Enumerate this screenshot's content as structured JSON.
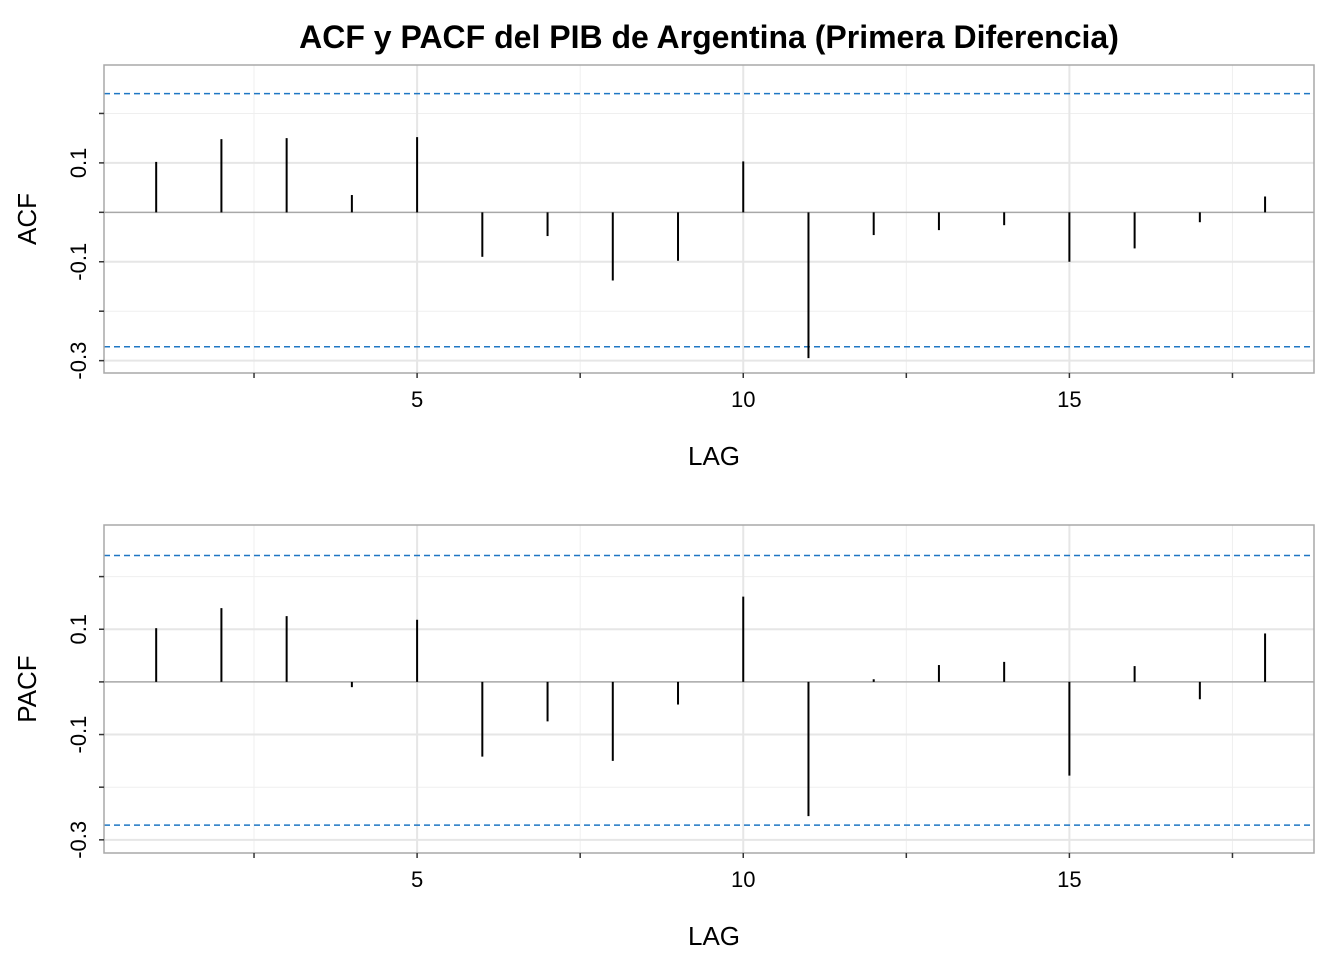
{
  "title": "ACF y PACF del PIB de Argentina (Primera Diferencia)",
  "colors": {
    "bars": "#000000",
    "conf_line": "#1f77c4",
    "grid_major": "#e6e6e6",
    "grid_minor": "#efefef",
    "frame": "#a8a8a8",
    "zero_line": "#a8a8a8"
  },
  "chart_data": [
    {
      "type": "bar",
      "ylabel": "ACF",
      "xlabel": "LAG",
      "x": [
        1,
        2,
        3,
        4,
        5,
        6,
        7,
        8,
        9,
        10,
        11,
        12,
        13,
        14,
        15,
        16,
        17,
        18
      ],
      "values": [
        0.102,
        0.148,
        0.15,
        0.035,
        0.152,
        -0.09,
        -0.048,
        -0.138,
        -0.098,
        0.103,
        -0.295,
        -0.046,
        -0.036,
        -0.026,
        -0.1,
        -0.073,
        -0.02,
        0.032
      ],
      "conf_bounds": [
        0.24,
        -0.272
      ],
      "xlim": [
        0.2,
        18.75
      ],
      "ylim": [
        -0.325,
        0.298
      ],
      "x_ticks": [
        5,
        10,
        15
      ],
      "x_tick_labels": [
        "5",
        "10",
        "15"
      ],
      "y_ticks": [
        0.1,
        -0.1,
        -0.3
      ],
      "y_tick_labels": [
        "0.1",
        "-0.1",
        "-0.3"
      ],
      "grid": true
    },
    {
      "type": "bar",
      "ylabel": "PACF",
      "xlabel": "LAG",
      "x": [
        1,
        2,
        3,
        4,
        5,
        6,
        7,
        8,
        9,
        10,
        11,
        12,
        13,
        14,
        15,
        16,
        17,
        18
      ],
      "values": [
        0.102,
        0.14,
        0.125,
        -0.01,
        0.118,
        -0.142,
        -0.075,
        -0.15,
        -0.043,
        0.162,
        -0.255,
        0.005,
        0.032,
        0.038,
        -0.178,
        0.03,
        -0.033,
        0.092
      ],
      "conf_bounds": [
        0.24,
        -0.272
      ],
      "xlim": [
        0.2,
        18.75
      ],
      "ylim": [
        -0.325,
        0.298
      ],
      "x_ticks": [
        5,
        10,
        15
      ],
      "x_tick_labels": [
        "5",
        "10",
        "15"
      ],
      "y_ticks": [
        0.1,
        -0.1,
        -0.3
      ],
      "y_tick_labels": [
        "0.1",
        "-0.1",
        "-0.3"
      ],
      "grid": true
    }
  ]
}
